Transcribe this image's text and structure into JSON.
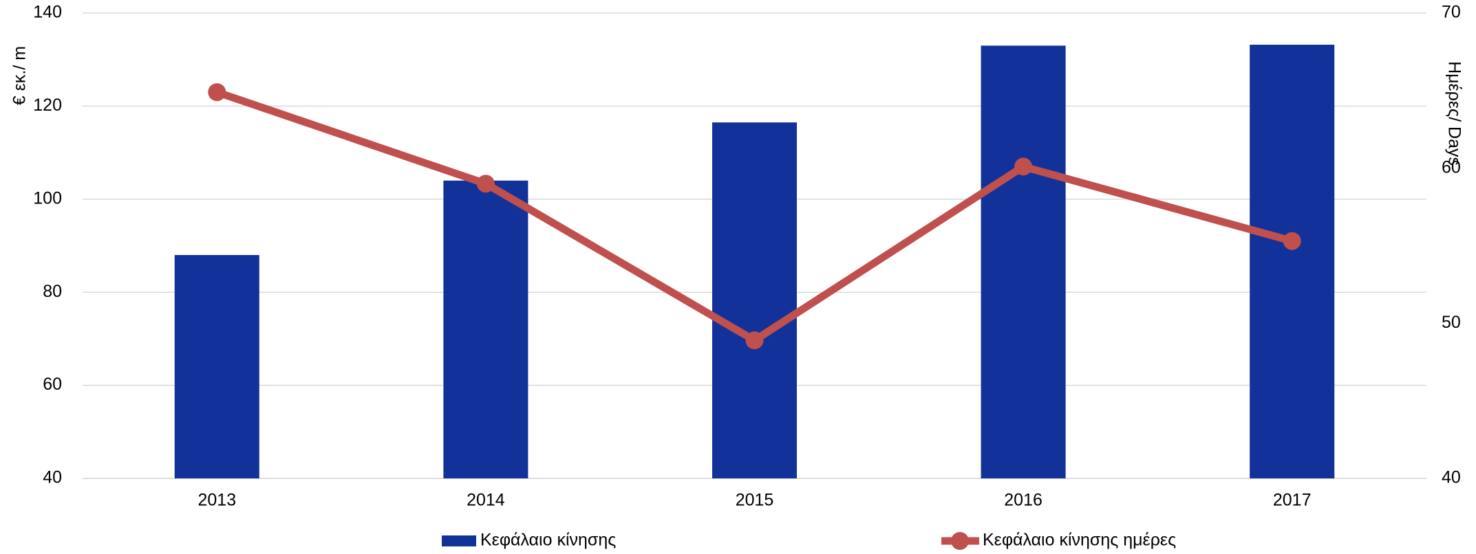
{
  "chart_data": {
    "type": "bar",
    "categories": [
      "2013",
      "2014",
      "2015",
      "2016",
      "2017"
    ],
    "series": [
      {
        "name": "Κεφάλαιο κίνησης",
        "type": "bar",
        "color": "#12329a",
        "values": [
          88,
          104,
          116.5,
          133,
          133.2
        ]
      },
      {
        "name": "Κεφάλαιο κίνησης ημέρες",
        "type": "line",
        "axis": "y2",
        "color": "#c0504d",
        "values": [
          64.9,
          59.0,
          48.9,
          60.1,
          55.3
        ]
      }
    ],
    "ylabel": "€ εκ./ m",
    "y2label": "Ημέρες/ Days",
    "ylim": [
      40,
      140
    ],
    "yticks": [
      40,
      60,
      80,
      100,
      120,
      140
    ],
    "y2lim": [
      40,
      70
    ],
    "y2ticks": [
      40,
      50,
      60,
      70
    ],
    "grid": true,
    "legend": "bottom"
  }
}
